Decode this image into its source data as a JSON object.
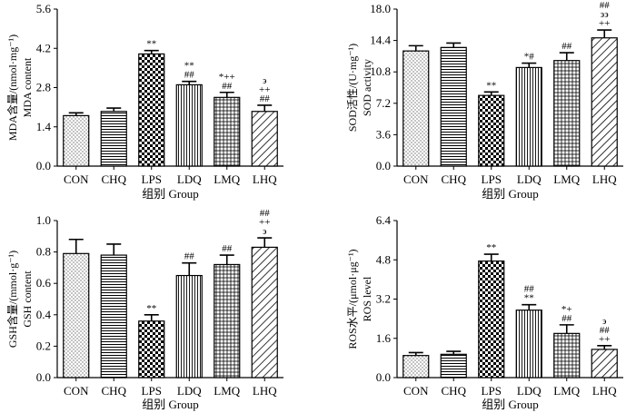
{
  "chart_data": [
    {
      "id": "mda",
      "type": "bar",
      "title": "",
      "xlabel": "组别  Group",
      "ylabel": [
        "MDA含量/(nmol·mg⁻¹)",
        "MDA content"
      ],
      "ylim": [
        0,
        5.6
      ],
      "yticks": [
        "0.0",
        "1.4",
        "2.8",
        "4.2",
        "5.6"
      ],
      "categories": [
        "CON",
        "CHQ",
        "LPS",
        "LDQ",
        "LMQ",
        "LHQ"
      ],
      "values": [
        1.8,
        1.95,
        4.0,
        2.9,
        2.45,
        1.95
      ],
      "errors": [
        0.1,
        0.12,
        0.12,
        0.12,
        0.18,
        0.22
      ],
      "annotations": [
        [],
        [],
        [
          "**"
        ],
        [
          "##",
          "**"
        ],
        [
          "##",
          "*++"
        ],
        [
          "##",
          "++",
          "϶"
        ]
      ]
    },
    {
      "id": "sod",
      "type": "bar",
      "title": "",
      "xlabel": "组别  Group",
      "ylabel": [
        "SOD活性/(U·mg⁻¹)",
        "SOD activity"
      ],
      "ylim": [
        0,
        18
      ],
      "yticks": [
        "0.0",
        "3.6",
        "7.2",
        "10.8",
        "14.4",
        "18.0"
      ],
      "categories": [
        "CON",
        "CHQ",
        "LPS",
        "LDQ",
        "LMQ",
        "LHQ"
      ],
      "values": [
        13.2,
        13.6,
        8.1,
        11.3,
        12.1,
        14.7
      ],
      "errors": [
        0.6,
        0.5,
        0.4,
        0.5,
        0.9,
        0.9
      ],
      "annotations": [
        [],
        [],
        [
          "**"
        ],
        [
          "*#"
        ],
        [
          "##"
        ],
        [
          "++",
          "϶϶",
          "##"
        ]
      ]
    },
    {
      "id": "gsh",
      "type": "bar",
      "title": "",
      "xlabel": "组别  Group",
      "ylabel": [
        "GSH含量/(mmol·g⁻¹)",
        "GSH content"
      ],
      "ylim": [
        0,
        1.0
      ],
      "yticks": [
        "0.0",
        "0.2",
        "0.4",
        "0.6",
        "0.8",
        "1.0"
      ],
      "categories": [
        "CON",
        "CHQ",
        "LPS",
        "LDQ",
        "LMQ",
        "LHQ"
      ],
      "values": [
        0.79,
        0.78,
        0.36,
        0.65,
        0.72,
        0.83
      ],
      "errors": [
        0.09,
        0.07,
        0.04,
        0.08,
        0.06,
        0.06
      ],
      "annotations": [
        [],
        [],
        [
          "**"
        ],
        [
          "##"
        ],
        [
          "##"
        ],
        [
          "϶",
          "++",
          "##"
        ]
      ]
    },
    {
      "id": "ros",
      "type": "bar",
      "title": "",
      "xlabel": "组别  Group",
      "ylabel": [
        "ROS水平/(μmol·μg⁻¹)",
        "ROS level"
      ],
      "ylim": [
        0,
        6.4
      ],
      "yticks": [
        "0.0",
        "1.6",
        "3.2",
        "4.8",
        "6.4"
      ],
      "categories": [
        "CON",
        "CHQ",
        "LPS",
        "LDQ",
        "LMQ",
        "LHQ"
      ],
      "values": [
        0.9,
        0.95,
        4.75,
        2.75,
        1.8,
        1.15
      ],
      "errors": [
        0.12,
        0.12,
        0.28,
        0.22,
        0.35,
        0.15
      ],
      "annotations": [
        [],
        [],
        [
          "**"
        ],
        [
          "**",
          "##"
        ],
        [
          "##",
          "*+"
        ],
        [
          "++",
          "##",
          "϶"
        ]
      ]
    }
  ],
  "patterns": [
    "dots",
    "hlines",
    "checker",
    "vlines",
    "grid",
    "diag"
  ]
}
